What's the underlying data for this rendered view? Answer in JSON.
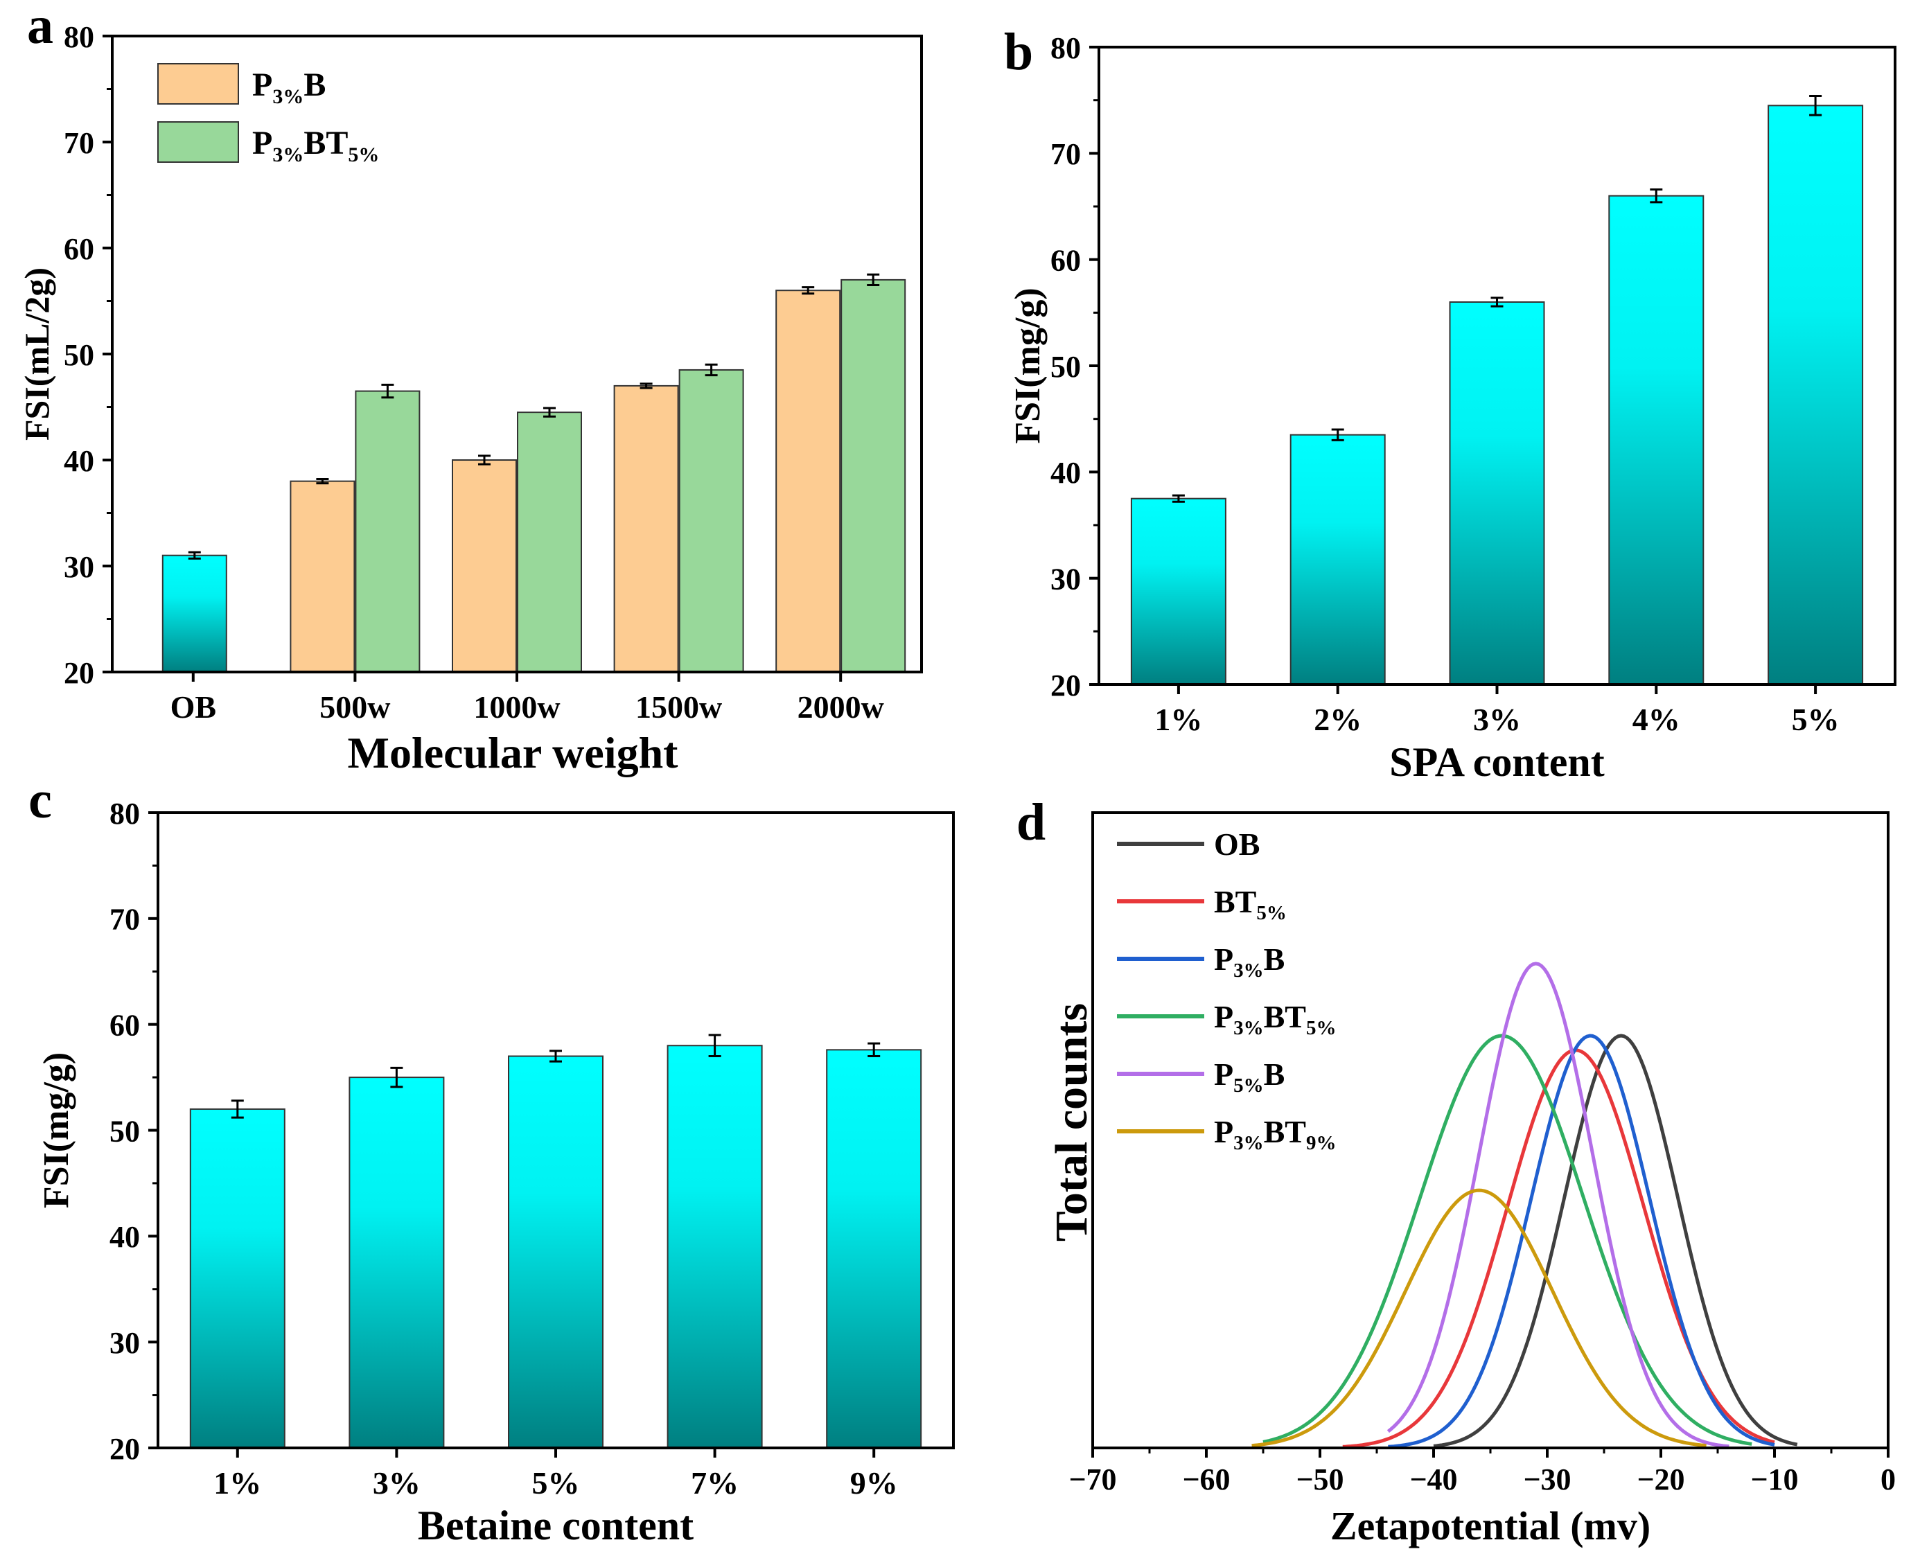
{
  "colors": {
    "cyan_top": "#00ffff",
    "cyan_bottom": "#00807f",
    "orange": "#fdcc92",
    "green": "#98d89a",
    "frame": "#000000"
  },
  "chart_data": [
    {
      "panel": "a",
      "type": "bar",
      "title": "",
      "xlabel": "Molecular weight",
      "ylabel": "FSI(mL/2g)",
      "ylim": [
        20,
        80
      ],
      "yticks": [
        "20",
        "30",
        "40",
        "50",
        "60",
        "70",
        "80"
      ],
      "categories": [
        "OB",
        "500w",
        "1000w",
        "1500w",
        "2000w"
      ],
      "control": {
        "name": "OB",
        "value": 31,
        "error": 0.3,
        "color": "cyan-gradient"
      },
      "series": [
        {
          "name": "P3%B",
          "legend": {
            "base": "P",
            "sub1": "3%",
            "mid": "B",
            "sub2": ""
          },
          "color": "orange",
          "values": [
            null,
            38,
            40,
            47,
            56
          ],
          "errors": [
            null,
            0.2,
            0.4,
            0.2,
            0.3
          ]
        },
        {
          "name": "P3%BT5%",
          "legend": {
            "base": "P",
            "sub1": "3%",
            "mid": "BT",
            "sub2": "5%"
          },
          "color": "green",
          "values": [
            null,
            46.5,
            44.5,
            48.5,
            57
          ],
          "errors": [
            null,
            0.6,
            0.4,
            0.5,
            0.5
          ]
        }
      ],
      "legend_position": "top-left"
    },
    {
      "panel": "b",
      "type": "bar",
      "title": "",
      "xlabel": "SPA content",
      "ylabel": "FSI(mg/g)",
      "ylim": [
        20,
        80
      ],
      "yticks": [
        "20",
        "30",
        "40",
        "50",
        "60",
        "70",
        "80"
      ],
      "categories": [
        "1%",
        "2%",
        "3%",
        "4%",
        "5%"
      ],
      "values": [
        37.5,
        43.5,
        56,
        66,
        74.5
      ],
      "errors": [
        0.3,
        0.5,
        0.4,
        0.6,
        0.9
      ],
      "color": "cyan-gradient"
    },
    {
      "panel": "c",
      "type": "bar",
      "title": "",
      "xlabel": "Betaine content",
      "ylabel": "FSI(mg/g)",
      "ylim": [
        20,
        80
      ],
      "yticks": [
        "20",
        "30",
        "40",
        "50",
        "60",
        "70",
        "80"
      ],
      "categories": [
        "1%",
        "3%",
        "5%",
        "7%",
        "9%"
      ],
      "values": [
        52,
        55,
        57,
        58,
        57.6
      ],
      "errors": [
        0.8,
        0.9,
        0.5,
        1.0,
        0.6
      ],
      "color": "cyan-gradient"
    },
    {
      "panel": "d",
      "type": "line",
      "title": "",
      "xlabel": "Zetapotential (mv)",
      "ylabel": "Total counts",
      "xlim": [
        -70,
        0
      ],
      "xticks": [
        "−70",
        "−60",
        "−50",
        "−40",
        "−30",
        "−20",
        "−10",
        "0"
      ],
      "yticks": [],
      "legend_position": "top-left",
      "series": [
        {
          "name": "OB",
          "legend": {
            "base": "OB",
            "sub1": "",
            "mid": "",
            "sub2": ""
          },
          "color": "#3f3f3f",
          "peak_x": -23.5,
          "peak_y": 1.0,
          "sigma": 5.0,
          "range": [
            -40,
            -8
          ]
        },
        {
          "name": "BT5%",
          "legend": {
            "base": "BT",
            "sub1": "5%",
            "mid": "",
            "sub2": ""
          },
          "color": "#e8373a",
          "peak_x": -27.5,
          "peak_y": 0.965,
          "sigma": 6.0,
          "range": [
            -48,
            -10
          ]
        },
        {
          "name": "P3%B",
          "legend": {
            "base": "P",
            "sub1": "3%",
            "mid": "B",
            "sub2": ""
          },
          "color": "#1f5fcf",
          "peak_x": -26.2,
          "peak_y": 1.0,
          "sigma": 5.2,
          "range": [
            -44,
            -10
          ]
        },
        {
          "name": "P3%BT5%",
          "legend": {
            "base": "P",
            "sub1": "3%",
            "mid": "BT",
            "sub2": "5%"
          },
          "color": "#2fae62",
          "peak_x": -34.0,
          "peak_y": 1.0,
          "sigma": 7.2,
          "range": [
            -55,
            -12
          ]
        },
        {
          "name": "P5%B",
          "legend": {
            "base": "P",
            "sub1": "5%",
            "mid": "B",
            "sub2": ""
          },
          "color": "#b36ee8",
          "peak_x": -31.0,
          "peak_y": 1.175,
          "sigma": 5.0,
          "range": [
            -44,
            -14
          ]
        },
        {
          "name": "P3%BT9%",
          "legend": {
            "base": "P",
            "sub1": "3%",
            "mid": "BT",
            "sub2": "9%"
          },
          "color": "#cc9a0c",
          "peak_x": -36.0,
          "peak_y": 0.625,
          "sigma": 6.5,
          "range": [
            -56,
            -16
          ]
        }
      ]
    }
  ]
}
